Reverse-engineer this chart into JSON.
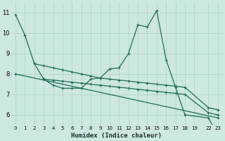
{
  "bg_color": "#cde8e0",
  "grid_color": "#b0cfc8",
  "line_color": "#1a6b5a",
  "xlabel": "Humidex (Indice chaleur)",
  "ylim": [
    5.5,
    11.5
  ],
  "yticks": [
    6,
    7,
    8,
    9,
    10,
    11
  ],
  "xtick_positions": [
    0,
    1,
    2,
    3,
    4,
    5,
    6,
    7,
    8,
    9,
    10,
    11,
    12,
    13,
    14,
    15,
    16,
    17,
    18,
    19,
    22,
    23
  ],
  "xtick_labels": [
    "0",
    "1",
    "2",
    "3",
    "4",
    "5",
    "6",
    "7",
    "8",
    "9",
    "10",
    "11",
    "12",
    "13",
    "14",
    "15",
    "16",
    "17",
    "18",
    "19",
    "22",
    "23"
  ],
  "series": [
    {
      "x": [
        0,
        1,
        2,
        3,
        4,
        5,
        6,
        7,
        8,
        9,
        10,
        11,
        12,
        13,
        14,
        15,
        16,
        17,
        18,
        22,
        23
      ],
      "y": [
        10.9,
        9.9,
        8.5,
        7.75,
        7.45,
        7.3,
        7.3,
        7.3,
        7.75,
        7.8,
        8.25,
        8.3,
        9.0,
        10.4,
        10.3,
        11.1,
        8.7,
        7.35,
        6.0,
        5.85,
        5.0
      ]
    },
    {
      "x": [
        2,
        3,
        4,
        5,
        6,
        7,
        8,
        9,
        10,
        11,
        12,
        13,
        14,
        15,
        16,
        17,
        18,
        22,
        23
      ],
      "y": [
        8.5,
        8.4,
        8.3,
        8.2,
        8.1,
        8.0,
        7.9,
        7.8,
        7.75,
        7.7,
        7.65,
        7.6,
        7.55,
        7.5,
        7.45,
        7.4,
        7.35,
        6.35,
        6.25
      ]
    },
    {
      "x": [
        3,
        4,
        5,
        6,
        7,
        8,
        9,
        10,
        11,
        12,
        13,
        14,
        15,
        16,
        17,
        18,
        22,
        23
      ],
      "y": [
        7.75,
        7.7,
        7.65,
        7.6,
        7.55,
        7.5,
        7.45,
        7.4,
        7.35,
        7.3,
        7.25,
        7.2,
        7.15,
        7.1,
        7.05,
        7.0,
        6.1,
        6.0
      ]
    },
    {
      "x": [
        0,
        23
      ],
      "y": [
        8.0,
        5.85
      ]
    }
  ]
}
